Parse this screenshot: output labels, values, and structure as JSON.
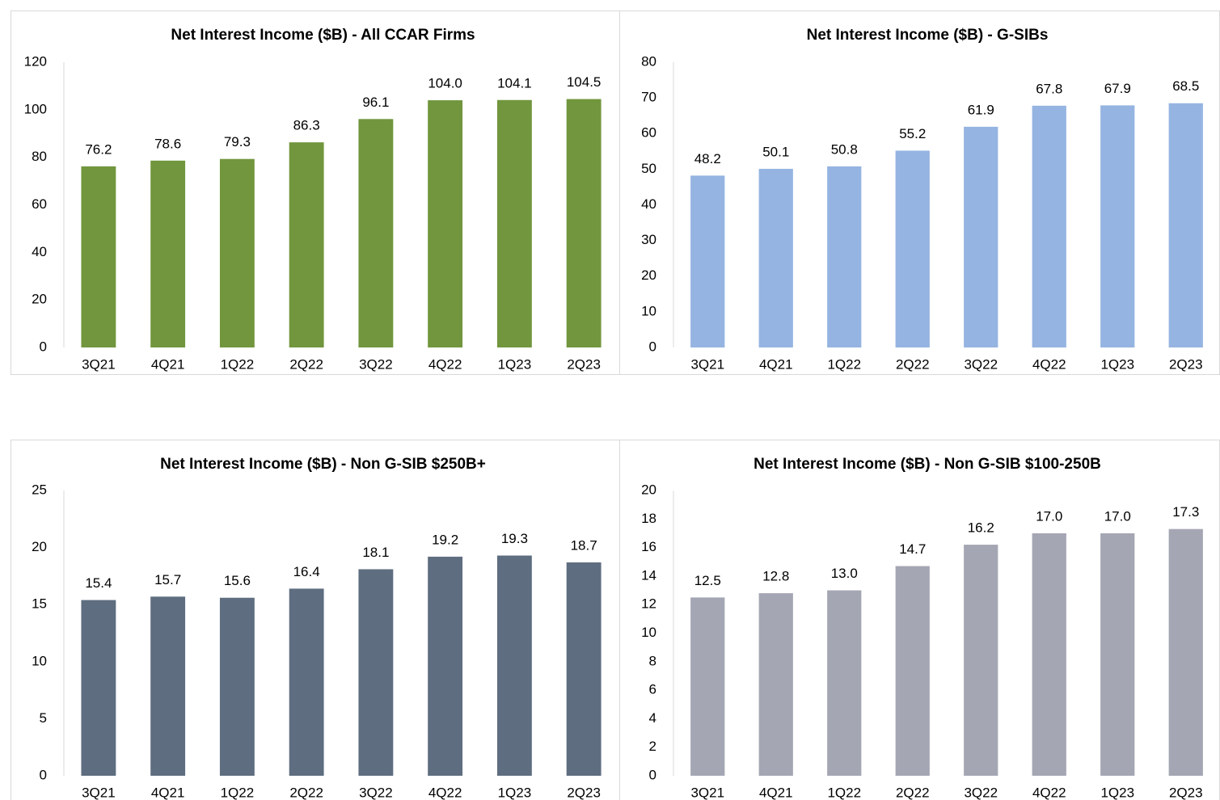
{
  "chart_data": [
    {
      "type": "bar",
      "title": "Net Interest Income ($B) - All CCAR Firms",
      "categories": [
        "3Q21",
        "4Q21",
        "1Q22",
        "2Q22",
        "3Q22",
        "4Q22",
        "1Q23",
        "2Q23"
      ],
      "values": [
        76.2,
        78.6,
        79.3,
        86.3,
        96.1,
        104.0,
        104.1,
        104.5
      ],
      "value_labels": [
        "76.2",
        "78.6",
        "79.3",
        "86.3",
        "96.1",
        "104.0",
        "104.1",
        "104.5"
      ],
      "color": "#71963d",
      "ylim": [
        0,
        120
      ],
      "yticks": [
        0,
        20,
        40,
        60,
        80,
        100,
        120
      ]
    },
    {
      "type": "bar",
      "title": "Net Interest Income ($B) - G-SIBs",
      "categories": [
        "3Q21",
        "4Q21",
        "1Q22",
        "2Q22",
        "3Q22",
        "4Q22",
        "1Q23",
        "2Q23"
      ],
      "values": [
        48.2,
        50.1,
        50.8,
        55.2,
        61.9,
        67.8,
        67.9,
        68.5
      ],
      "value_labels": [
        "48.2",
        "50.1",
        "50.8",
        "55.2",
        "61.9",
        "67.8",
        "67.9",
        "68.5"
      ],
      "color": "#95b4e1",
      "ylim": [
        0,
        80
      ],
      "yticks": [
        0,
        10,
        20,
        30,
        40,
        50,
        60,
        70,
        80
      ]
    },
    {
      "type": "bar",
      "title": "Net Interest Income ($B) - Non G-SIB $250B+",
      "categories": [
        "3Q21",
        "4Q21",
        "1Q22",
        "2Q22",
        "3Q22",
        "4Q22",
        "1Q23",
        "2Q23"
      ],
      "values": [
        15.4,
        15.7,
        15.6,
        16.4,
        18.1,
        19.2,
        19.3,
        18.7
      ],
      "value_labels": [
        "15.4",
        "15.7",
        "15.6",
        "16.4",
        "18.1",
        "19.2",
        "19.3",
        "18.7"
      ],
      "color": "#5f6d80",
      "ylim": [
        0,
        25
      ],
      "yticks": [
        0,
        5,
        10,
        15,
        20,
        25
      ]
    },
    {
      "type": "bar",
      "title": "Net Interest Income ($B) - Non G-SIB $100-250B",
      "categories": [
        "3Q21",
        "4Q21",
        "1Q22",
        "2Q22",
        "3Q22",
        "4Q22",
        "1Q23",
        "2Q23"
      ],
      "values": [
        12.5,
        12.8,
        13.0,
        14.7,
        16.2,
        17.0,
        17.0,
        17.3
      ],
      "value_labels": [
        "12.5",
        "12.8",
        "13.0",
        "14.7",
        "16.2",
        "17.0",
        "17.0",
        "17.3"
      ],
      "color": "#a4a6b3",
      "ylim": [
        0,
        20
      ],
      "yticks": [
        0,
        2,
        4,
        6,
        8,
        10,
        12,
        14,
        16,
        18,
        20
      ]
    }
  ]
}
